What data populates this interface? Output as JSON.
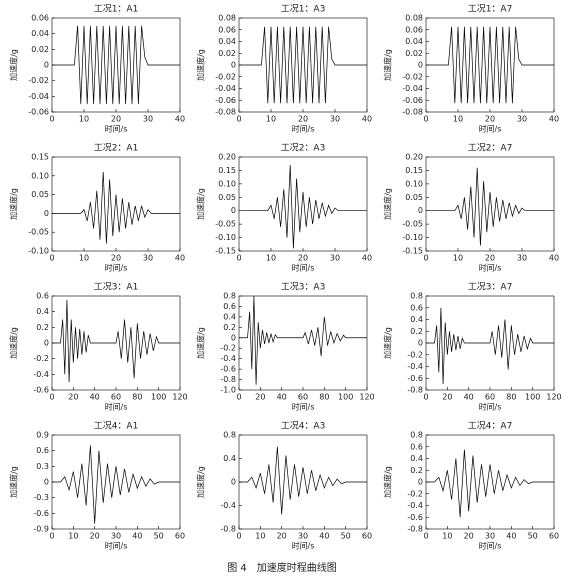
{
  "caption": "图 4　加速度时程曲线图",
  "chart_data": [
    {
      "type": "line",
      "title": "工况1：A1",
      "xlabel": "时间/s",
      "ylabel": "加速度/g",
      "color": "#000000",
      "xlim": [
        0,
        40
      ],
      "xticks": [
        0,
        10,
        20,
        30,
        40
      ],
      "ylim": [
        -0.06,
        0.06
      ],
      "yticks": [
        -0.06,
        -0.04,
        -0.02,
        0,
        0.02,
        0.04,
        0.06
      ],
      "x": [
        0,
        7,
        8,
        9,
        10,
        11,
        12,
        13,
        14,
        15,
        16,
        17,
        18,
        19,
        20,
        21,
        22,
        23,
        24,
        25,
        26,
        27,
        28,
        29,
        30,
        40
      ],
      "values": [
        0,
        0,
        0.05,
        -0.05,
        0.05,
        -0.05,
        0.05,
        -0.05,
        0.05,
        -0.05,
        0.05,
        -0.05,
        0.05,
        -0.05,
        0.05,
        -0.05,
        0.05,
        -0.05,
        0.05,
        -0.05,
        0.05,
        -0.05,
        0.05,
        0.01,
        0,
        0
      ]
    },
    {
      "type": "line",
      "title": "工况1：A3",
      "xlabel": "时间/s",
      "ylabel": "加速度/g",
      "color": "#000000",
      "xlim": [
        0,
        40
      ],
      "xticks": [
        0,
        10,
        20,
        30,
        40
      ],
      "ylim": [
        -0.08,
        0.08
      ],
      "yticks": [
        -0.08,
        -0.06,
        -0.04,
        -0.02,
        0,
        0.02,
        0.04,
        0.06,
        0.08
      ],
      "x": [
        0,
        7,
        8,
        9,
        10,
        11,
        12,
        13,
        14,
        15,
        16,
        17,
        18,
        19,
        20,
        21,
        22,
        23,
        24,
        25,
        26,
        27,
        28,
        29,
        30,
        40
      ],
      "values": [
        0,
        0,
        0.065,
        -0.065,
        0.065,
        -0.065,
        0.065,
        -0.065,
        0.065,
        -0.065,
        0.065,
        -0.065,
        0.065,
        -0.065,
        0.065,
        -0.065,
        0.065,
        -0.065,
        0.065,
        -0.065,
        0.065,
        -0.065,
        0.065,
        0.01,
        0,
        0
      ]
    },
    {
      "type": "line",
      "title": "工况1：A7",
      "xlabel": "时间/s",
      "ylabel": "加速度/g",
      "color": "#000000",
      "xlim": [
        0,
        40
      ],
      "xticks": [
        0,
        10,
        20,
        30,
        40
      ],
      "ylim": [
        -0.08,
        0.08
      ],
      "yticks": [
        -0.08,
        -0.06,
        -0.04,
        -0.02,
        0,
        0.02,
        0.04,
        0.06,
        0.08
      ],
      "x": [
        0,
        7,
        8,
        9,
        10,
        11,
        12,
        13,
        14,
        15,
        16,
        17,
        18,
        19,
        20,
        21,
        22,
        23,
        24,
        25,
        26,
        27,
        28,
        29,
        30,
        40
      ],
      "values": [
        0,
        0,
        0.065,
        -0.065,
        0.065,
        -0.065,
        0.065,
        -0.065,
        0.065,
        -0.065,
        0.065,
        -0.065,
        0.065,
        -0.065,
        0.065,
        -0.065,
        0.065,
        -0.065,
        0.065,
        -0.065,
        0.065,
        -0.065,
        0.065,
        0.01,
        0,
        0
      ]
    },
    {
      "type": "line",
      "title": "工况2：A1",
      "xlabel": "时间/s",
      "ylabel": "加速度/g",
      "color": "#000000",
      "xlim": [
        0,
        40
      ],
      "xticks": [
        0,
        10,
        20,
        30,
        40
      ],
      "ylim": [
        -0.1,
        0.15
      ],
      "yticks": [
        {
          "value": -0.1,
          "label": "-0.10"
        },
        -0.05,
        0,
        0.05,
        {
          "value": 0.1,
          "label": "0.10"
        },
        0.15
      ],
      "x": [
        0,
        9,
        10,
        11,
        12,
        13,
        14,
        15,
        16,
        17,
        18,
        19,
        20,
        21,
        22,
        23,
        24,
        25,
        26,
        27,
        28,
        29,
        30,
        31,
        40
      ],
      "values": [
        0,
        0,
        0.01,
        -0.02,
        0.03,
        -0.04,
        0.06,
        -0.07,
        0.11,
        -0.08,
        0.09,
        -0.06,
        0.05,
        -0.05,
        0.04,
        -0.04,
        0.03,
        -0.03,
        0.02,
        -0.02,
        0.02,
        -0.01,
        0.01,
        0,
        0
      ]
    },
    {
      "type": "line",
      "title": "工况2：A3",
      "xlabel": "时间/s",
      "ylabel": "加速度/g",
      "color": "#000000",
      "xlim": [
        0,
        40
      ],
      "xticks": [
        0,
        10,
        20,
        30,
        40
      ],
      "ylim": [
        -0.15,
        0.2
      ],
      "yticks": [
        -0.15,
        {
          "value": -0.1,
          "label": "-0.10"
        },
        -0.05,
        0,
        0.05,
        {
          "value": 0.1,
          "label": "0.10"
        },
        0.15,
        {
          "value": 0.2,
          "label": "0.20"
        }
      ],
      "x": [
        0,
        9,
        10,
        11,
        12,
        13,
        14,
        15,
        16,
        17,
        18,
        19,
        20,
        21,
        22,
        23,
        24,
        25,
        26,
        27,
        28,
        29,
        30,
        31,
        40
      ],
      "values": [
        0,
        0,
        0.02,
        -0.03,
        0.05,
        -0.06,
        0.08,
        -0.1,
        0.17,
        -0.14,
        0.12,
        -0.08,
        0.07,
        -0.06,
        0.05,
        -0.05,
        0.04,
        -0.03,
        0.03,
        -0.02,
        0.02,
        -0.01,
        0.01,
        0,
        0
      ]
    },
    {
      "type": "line",
      "title": "工况2：A7",
      "xlabel": "时间/s",
      "ylabel": "加速度/g",
      "color": "#000000",
      "xlim": [
        0,
        40
      ],
      "xticks": [
        0,
        10,
        20,
        30,
        40
      ],
      "ylim": [
        -0.15,
        0.2
      ],
      "yticks": [
        -0.15,
        {
          "value": -0.1,
          "label": "-0.10"
        },
        -0.05,
        0,
        0.05,
        {
          "value": 0.1,
          "label": "0.10"
        },
        0.15,
        {
          "value": 0.2,
          "label": "0.20"
        }
      ],
      "x": [
        0,
        9,
        10,
        11,
        12,
        13,
        14,
        15,
        16,
        17,
        18,
        19,
        20,
        21,
        22,
        23,
        24,
        25,
        26,
        27,
        28,
        29,
        30,
        31,
        40
      ],
      "values": [
        0,
        0,
        0.02,
        -0.03,
        0.05,
        -0.07,
        0.09,
        -0.1,
        0.16,
        -0.13,
        0.11,
        -0.08,
        0.07,
        -0.06,
        0.05,
        -0.04,
        0.04,
        -0.03,
        0.03,
        -0.02,
        0.02,
        -0.01,
        0.01,
        0,
        0
      ]
    },
    {
      "type": "line",
      "title": "工况3：A1",
      "xlabel": "时间/s",
      "ylabel": "加速度/g",
      "color": "#000000",
      "xlim": [
        0,
        120
      ],
      "xticks": [
        0,
        20,
        40,
        60,
        80,
        100,
        120
      ],
      "ylim": [
        -0.6,
        0.6
      ],
      "yticks": [
        -0.6,
        -0.4,
        -0.2,
        0,
        0.2,
        0.4,
        0.6
      ],
      "x": [
        0,
        8,
        10,
        12,
        14,
        16,
        18,
        20,
        22,
        24,
        26,
        28,
        30,
        32,
        34,
        36,
        60,
        62,
        65,
        68,
        71,
        74,
        77,
        80,
        83,
        86,
        89,
        92,
        95,
        98,
        100,
        120
      ],
      "values": [
        0,
        0,
        0.3,
        -0.4,
        0.55,
        -0.5,
        0.3,
        -0.25,
        0.2,
        -0.2,
        0.18,
        -0.15,
        0.15,
        -0.12,
        0.1,
        0,
        0,
        0.15,
        -0.2,
        0.3,
        -0.25,
        0.2,
        -0.45,
        0.25,
        -0.2,
        0.15,
        -0.15,
        0.12,
        -0.1,
        0.08,
        0,
        0
      ]
    },
    {
      "type": "line",
      "title": "工况3：A3",
      "xlabel": "时间/s",
      "ylabel": "加速度/g",
      "color": "#000000",
      "xlim": [
        0,
        120
      ],
      "xticks": [
        0,
        20,
        40,
        60,
        80,
        100,
        120
      ],
      "ylim": [
        -1,
        0.8
      ],
      "yticks": [
        {
          "value": -1,
          "label": "-1.0"
        },
        -0.8,
        -0.6,
        -0.4,
        -0.2,
        0,
        0.2,
        0.4,
        0.6,
        0.8
      ],
      "x": [
        0,
        8,
        10,
        12,
        14,
        16,
        18,
        20,
        22,
        24,
        26,
        28,
        30,
        32,
        34,
        36,
        60,
        62,
        65,
        68,
        71,
        74,
        77,
        80,
        83,
        86,
        89,
        92,
        95,
        98,
        100,
        120
      ],
      "values": [
        0,
        0,
        0.5,
        -0.6,
        0.8,
        -0.9,
        0.3,
        -0.2,
        0.15,
        -0.12,
        0.1,
        -0.1,
        0.08,
        -0.08,
        0.06,
        0,
        0,
        0.1,
        -0.12,
        0.15,
        -0.15,
        0.2,
        -0.35,
        0.4,
        -0.15,
        0.12,
        -0.1,
        0.08,
        -0.06,
        0.05,
        0,
        0
      ]
    },
    {
      "type": "line",
      "title": "工况3：A7",
      "xlabel": "时间/s",
      "ylabel": "加速度/g",
      "color": "#000000",
      "xlim": [
        0,
        120
      ],
      "xticks": [
        0,
        20,
        40,
        60,
        80,
        100,
        120
      ],
      "ylim": [
        -0.8,
        0.8
      ],
      "yticks": [
        -0.8,
        -0.6,
        -0.4,
        -0.2,
        0,
        0.2,
        0.4,
        0.6,
        0.8
      ],
      "x": [
        0,
        8,
        10,
        12,
        14,
        16,
        18,
        20,
        22,
        24,
        26,
        28,
        30,
        32,
        34,
        36,
        60,
        62,
        65,
        68,
        71,
        74,
        77,
        80,
        83,
        86,
        89,
        92,
        95,
        98,
        100,
        120
      ],
      "values": [
        0,
        0,
        0.3,
        -0.5,
        0.6,
        -0.7,
        0.35,
        -0.2,
        0.2,
        -0.15,
        0.15,
        -0.12,
        0.12,
        -0.1,
        0.08,
        0,
        0,
        0.2,
        -0.2,
        0.3,
        -0.25,
        0.4,
        -0.45,
        0.3,
        -0.2,
        0.15,
        -0.15,
        0.12,
        -0.1,
        0.08,
        0,
        0
      ]
    },
    {
      "type": "line",
      "title": "工况4：A1",
      "xlabel": "时间/s",
      "ylabel": "加速度/g",
      "color": "#000000",
      "xlim": [
        0,
        60
      ],
      "xticks": [
        0,
        10,
        20,
        30,
        40,
        50,
        60
      ],
      "ylim": [
        -0.9,
        0.9
      ],
      "yticks": [
        -0.9,
        -0.6,
        -0.3,
        0,
        0.3,
        0.6,
        0.9
      ],
      "x": [
        0,
        4,
        6,
        8,
        10,
        12,
        14,
        16,
        18,
        20,
        22,
        24,
        26,
        28,
        30,
        32,
        34,
        36,
        38,
        40,
        42,
        44,
        46,
        48,
        50,
        60
      ],
      "values": [
        0,
        0,
        0.1,
        -0.15,
        0.2,
        -0.3,
        0.35,
        -0.45,
        0.7,
        -0.8,
        0.6,
        -0.4,
        0.35,
        -0.3,
        0.3,
        -0.25,
        0.25,
        -0.2,
        0.15,
        -0.12,
        0.1,
        -0.08,
        0.06,
        -0.04,
        0,
        0
      ]
    },
    {
      "type": "line",
      "title": "工况4：A3",
      "xlabel": "时间/s",
      "ylabel": "加速度/g",
      "color": "#000000",
      "xlim": [
        0,
        60
      ],
      "xticks": [
        0,
        10,
        20,
        30,
        40,
        50,
        60
      ],
      "ylim": [
        -0.8,
        0.8
      ],
      "yticks": [
        -0.8,
        -0.4,
        0,
        0.4,
        0.8
      ],
      "x": [
        0,
        4,
        6,
        8,
        10,
        12,
        14,
        16,
        18,
        20,
        22,
        24,
        26,
        28,
        30,
        32,
        34,
        36,
        38,
        40,
        42,
        44,
        46,
        48,
        50,
        60
      ],
      "values": [
        0,
        0,
        0.08,
        -0.1,
        0.15,
        -0.2,
        0.3,
        -0.35,
        0.6,
        -0.55,
        0.45,
        -0.3,
        0.3,
        -0.25,
        0.25,
        -0.2,
        0.2,
        -0.15,
        0.12,
        -0.1,
        0.08,
        -0.06,
        0.05,
        -0.03,
        0,
        0
      ]
    },
    {
      "type": "line",
      "title": "工况4：A7",
      "xlabel": "时间/s",
      "ylabel": "加速度/g",
      "color": "#000000",
      "xlim": [
        0,
        60
      ],
      "xticks": [
        0,
        10,
        20,
        30,
        40,
        50,
        60
      ],
      "ylim": [
        -0.8,
        0.8
      ],
      "yticks": [
        -0.8,
        -0.6,
        -0.4,
        -0.2,
        0,
        0.2,
        0.4,
        0.6,
        0.8
      ],
      "x": [
        0,
        4,
        6,
        8,
        10,
        12,
        14,
        16,
        18,
        20,
        22,
        24,
        26,
        28,
        30,
        32,
        34,
        36,
        38,
        40,
        42,
        44,
        46,
        48,
        50,
        60
      ],
      "values": [
        0,
        0,
        0.08,
        -0.15,
        0.2,
        -0.3,
        0.4,
        -0.6,
        0.55,
        -0.5,
        0.45,
        -0.35,
        0.3,
        -0.25,
        0.3,
        -0.2,
        0.2,
        -0.15,
        0.12,
        -0.1,
        0.08,
        -0.06,
        0.04,
        -0.03,
        0,
        0
      ]
    }
  ]
}
